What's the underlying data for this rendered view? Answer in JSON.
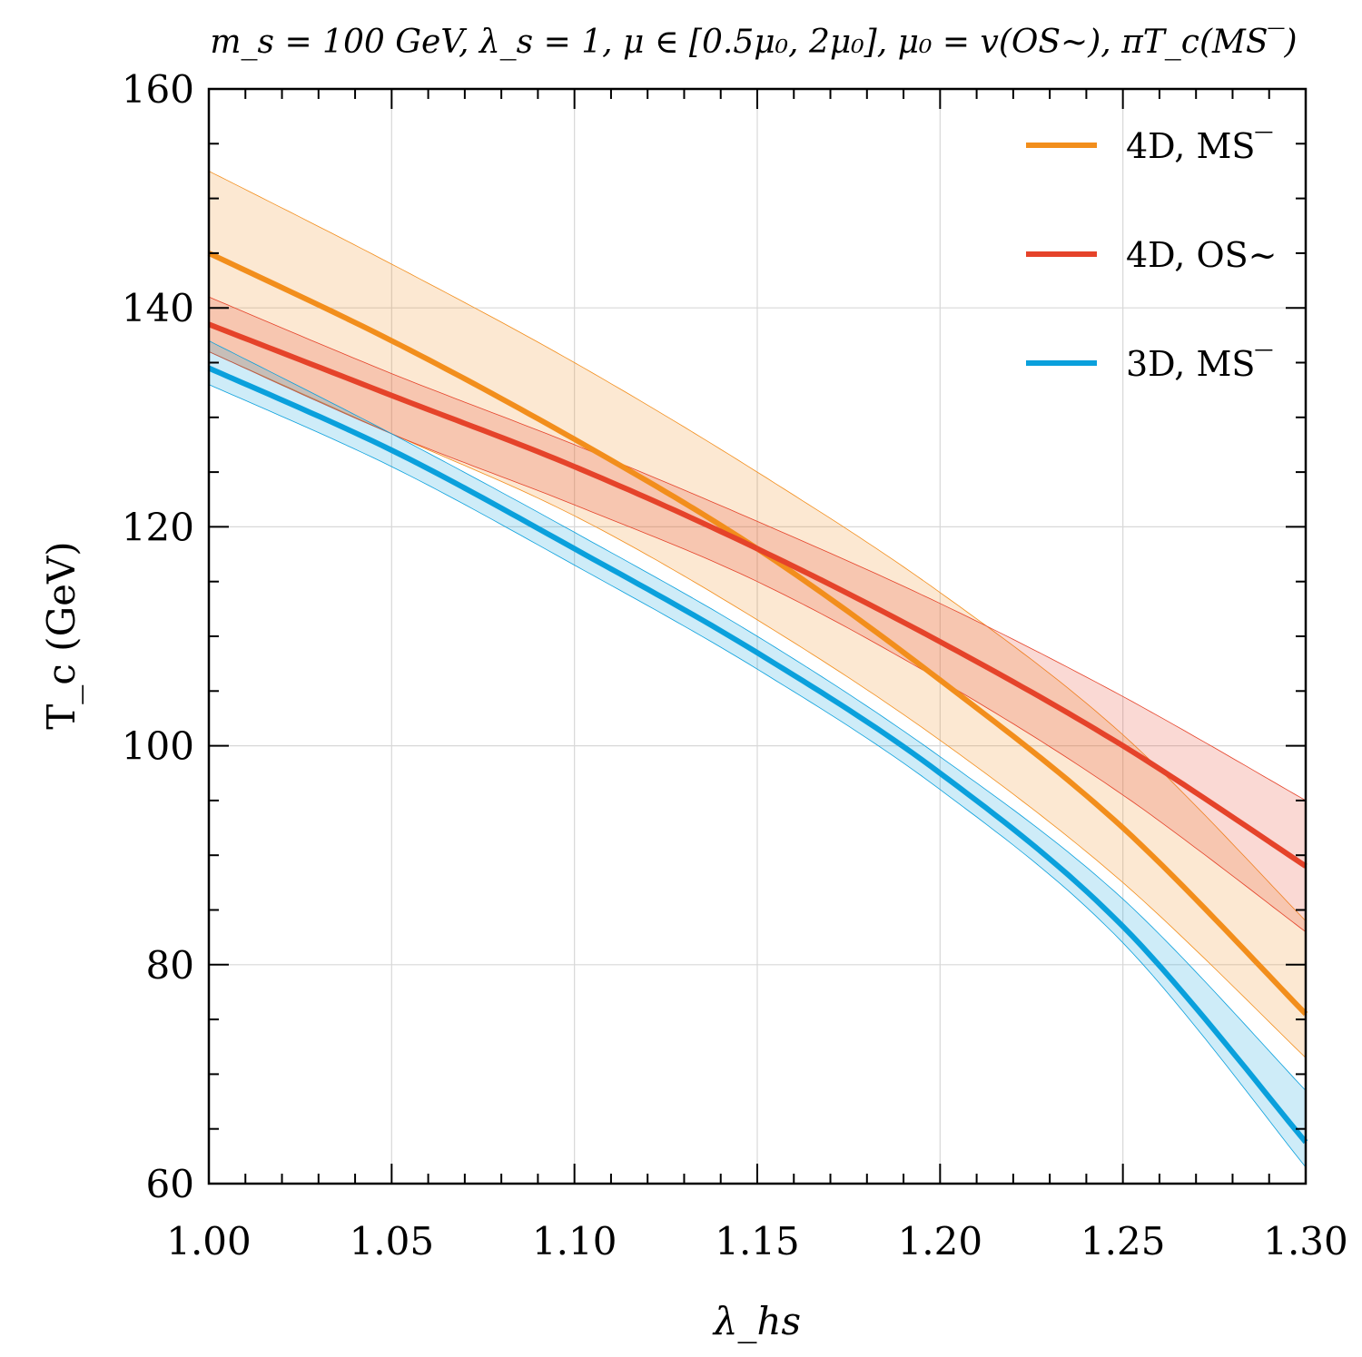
{
  "chart_data": {
    "type": "line",
    "title": "m_s = 100 GeV, λ_s = 1, μ ∈ [0.5μ₀, 2μ₀], μ₀ = v(OS~), πT_c(MS‾)",
    "xlabel": "λ_hs",
    "ylabel": "T_c (GeV)",
    "xlim": [
      1.0,
      1.3
    ],
    "ylim": [
      60,
      160
    ],
    "xticks": [
      "1.00",
      "1.05",
      "1.10",
      "1.15",
      "1.20",
      "1.25",
      "1.30"
    ],
    "yticks": [
      "60",
      "80",
      "100",
      "120",
      "140",
      "160"
    ],
    "grid": true,
    "legend_position": "top-right",
    "x": [
      1.0,
      1.05,
      1.1,
      1.15,
      1.2,
      1.25,
      1.3
    ],
    "series": [
      {
        "name": "4D, MS‾",
        "color": "#f28e1c",
        "values": [
          145.0,
          137.0,
          128.0,
          118.0,
          106.0,
          92.5,
          75.5
        ],
        "upper": [
          152.5,
          144.0,
          135.0,
          125.0,
          114.0,
          101.0,
          84.0
        ],
        "lower": [
          136.0,
          128.5,
          121.0,
          111.5,
          100.5,
          87.5,
          71.5
        ]
      },
      {
        "name": "4D, OS~",
        "color": "#e5432a",
        "values": [
          138.5,
          132.0,
          125.5,
          118.0,
          109.5,
          100.0,
          89.0
        ],
        "upper": [
          141.0,
          134.0,
          127.5,
          120.5,
          113.0,
          104.5,
          95.0
        ],
        "lower": [
          136.0,
          128.5,
          122.0,
          115.0,
          106.0,
          95.5,
          83.0
        ]
      },
      {
        "name": "3D, MS‾",
        "color": "#0aa0dc",
        "values": [
          134.5,
          127.0,
          118.0,
          108.5,
          97.5,
          83.5,
          63.8
        ],
        "upper": [
          137.0,
          128.5,
          119.5,
          110.0,
          99.0,
          86.0,
          68.5
        ],
        "lower": [
          133.0,
          125.5,
          116.5,
          107.0,
          96.0,
          82.0,
          61.5
        ]
      }
    ]
  }
}
